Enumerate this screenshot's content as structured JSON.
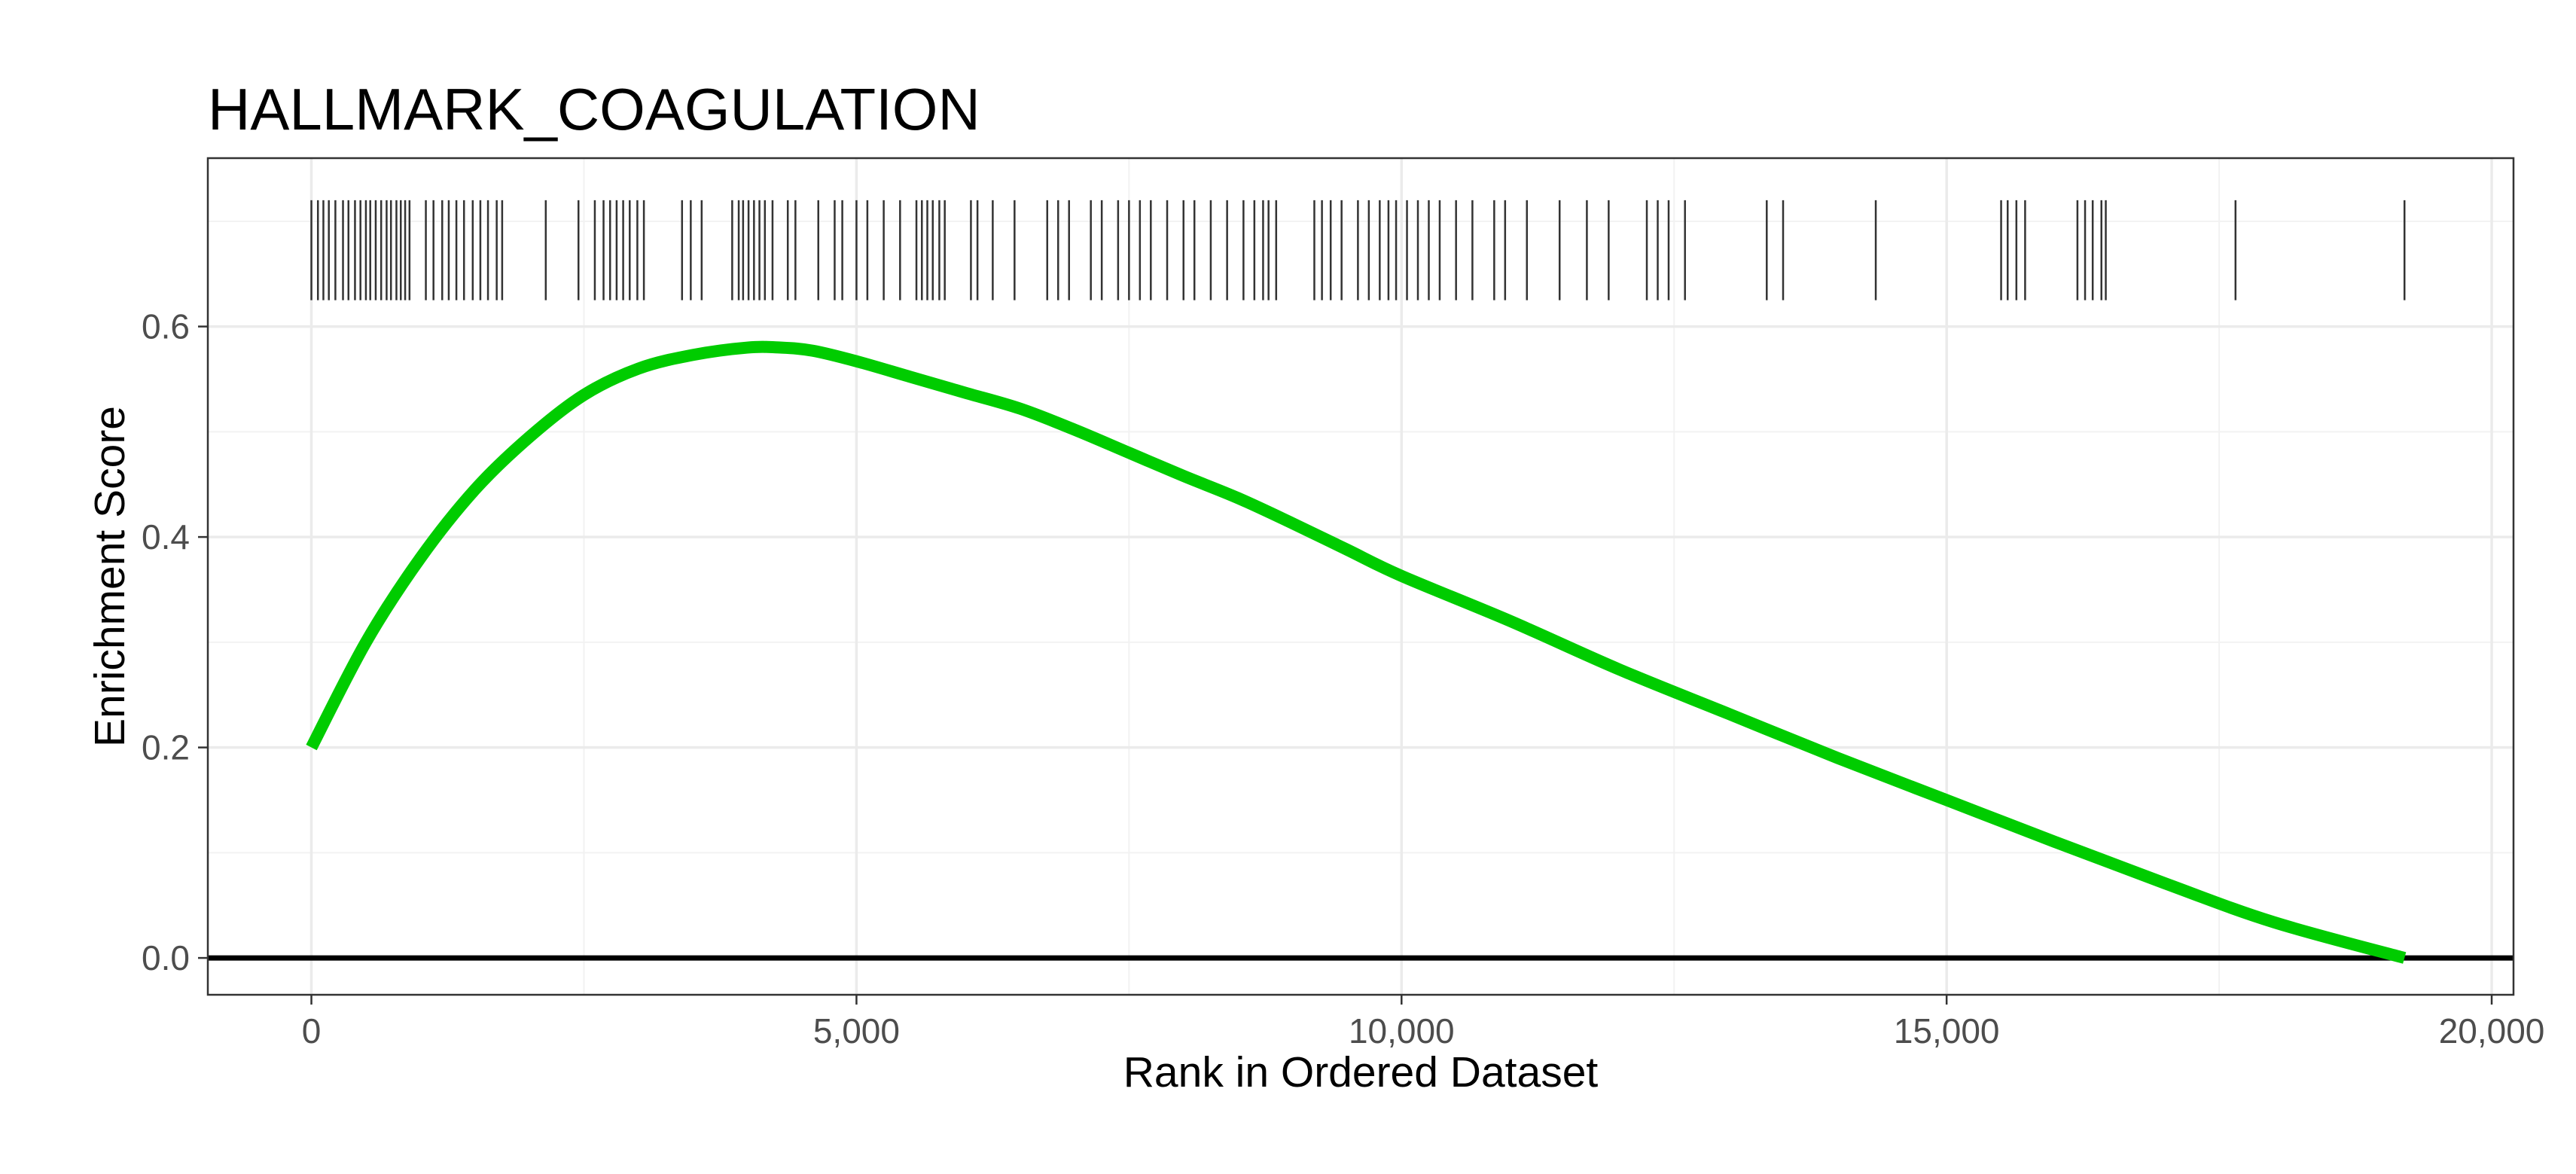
{
  "chart_data": {
    "type": "line",
    "title": "HALLMARK_COAGULATION",
    "xlabel": "Rank in Ordered Dataset",
    "ylabel": "Enrichment Score",
    "xlim": [
      -950,
      20200
    ],
    "ylim": [
      -0.035,
      0.76
    ],
    "x_ticks": [
      0,
      5000,
      10000,
      15000,
      20000
    ],
    "x_tick_labels": [
      "0",
      "5,000",
      "10,000",
      "15,000",
      "20,000"
    ],
    "y_ticks": [
      0.0,
      0.2,
      0.4,
      0.6
    ],
    "y_tick_labels": [
      "0.0",
      "0.2",
      "0.4",
      "0.6"
    ],
    "grid": true,
    "zero_line": true,
    "line_color": "#00CC00",
    "series": [
      {
        "x": [
          0,
          500,
          1000,
          1500,
          2000,
          2500,
          3000,
          3500,
          4000,
          4300,
          4600,
          5000,
          5500,
          6000,
          6500,
          7000,
          7500,
          8000,
          8500,
          9000,
          9500,
          10000,
          11000,
          12000,
          13000,
          14000,
          15000,
          16000,
          17000,
          18000,
          19200
        ],
        "y": [
          0.2,
          0.3,
          0.38,
          0.445,
          0.495,
          0.535,
          0.56,
          0.573,
          0.58,
          0.58,
          0.577,
          0.567,
          0.552,
          0.537,
          0.522,
          0.502,
          0.48,
          0.458,
          0.437,
          0.413,
          0.388,
          0.363,
          0.32,
          0.274,
          0.232,
          0.19,
          0.15,
          0.11,
          0.071,
          0.034,
          0.0
        ]
      }
    ],
    "gene_hits": [
      0,
      60,
      110,
      160,
      220,
      290,
      340,
      400,
      450,
      500,
      540,
      590,
      640,
      690,
      730,
      780,
      820,
      860,
      900,
      1050,
      1120,
      1200,
      1260,
      1330,
      1400,
      1480,
      1550,
      1620,
      1700,
      1750,
      2150,
      2450,
      2600,
      2680,
      2740,
      2800,
      2860,
      2920,
      2990,
      3050,
      3400,
      3480,
      3580,
      3860,
      3920,
      3960,
      4010,
      4060,
      4110,
      4160,
      4230,
      4370,
      4440,
      4650,
      4800,
      4870,
      5000,
      5100,
      5250,
      5400,
      5550,
      5600,
      5650,
      5700,
      5760,
      5810,
      6050,
      6110,
      6250,
      6450,
      6750,
      6850,
      6950,
      7150,
      7250,
      7400,
      7500,
      7600,
      7700,
      7850,
      8000,
      8100,
      8250,
      8400,
      8550,
      8650,
      8730,
      8780,
      8850,
      9200,
      9270,
      9350,
      9450,
      9600,
      9700,
      9800,
      9880,
      9950,
      10050,
      10150,
      10250,
      10350,
      10500,
      10650,
      10850,
      10950,
      11150,
      11450,
      11700,
      11900,
      12250,
      12350,
      12450,
      12600,
      13350,
      13500,
      14350,
      15500,
      15560,
      15640,
      15720,
      16200,
      16270,
      16340,
      16420,
      16460,
      17650,
      19200
    ]
  }
}
